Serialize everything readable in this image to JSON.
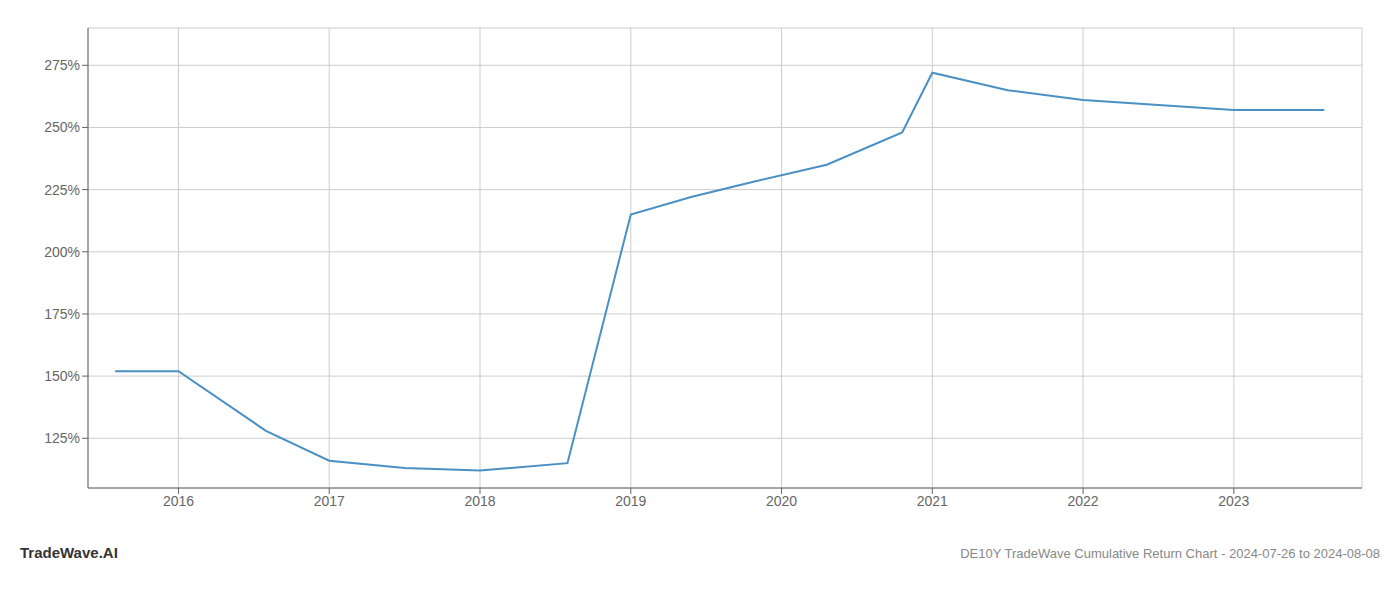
{
  "chart_data": {
    "type": "line",
    "title": "DE10Y TradeWave Cumulative Return Chart - 2024-07-26 to 2024-08-08",
    "annotations": [
      "TradeWave.AI"
    ],
    "x": [
      2015.58,
      2016.0,
      2016.58,
      2017.0,
      2017.5,
      2018.0,
      2018.58,
      2019.0,
      2019.4,
      2019.8,
      2020.3,
      2020.8,
      2021.0,
      2021.5,
      2022.0,
      2022.5,
      2023.0,
      2023.6
    ],
    "values": [
      152,
      152,
      128,
      116,
      113,
      112,
      115,
      215,
      222,
      228,
      235,
      248,
      272,
      265,
      261,
      259,
      257,
      257
    ],
    "color": "#4a90c4",
    "xlim": [
      2015.4,
      2023.85
    ],
    "ylim": [
      105,
      290
    ],
    "xticks": [
      2016,
      2017,
      2018,
      2019,
      2020,
      2021,
      2022,
      2023
    ],
    "yticks": [
      {
        "value": 125,
        "label": "125%"
      },
      {
        "value": 150,
        "label": "150%"
      },
      {
        "value": 175,
        "label": "175%"
      },
      {
        "value": 200,
        "label": "200%"
      },
      {
        "value": 225,
        "label": "225%"
      },
      {
        "value": 250,
        "label": "250%"
      },
      {
        "value": 275,
        "label": "275%"
      }
    ],
    "grid": true
  }
}
